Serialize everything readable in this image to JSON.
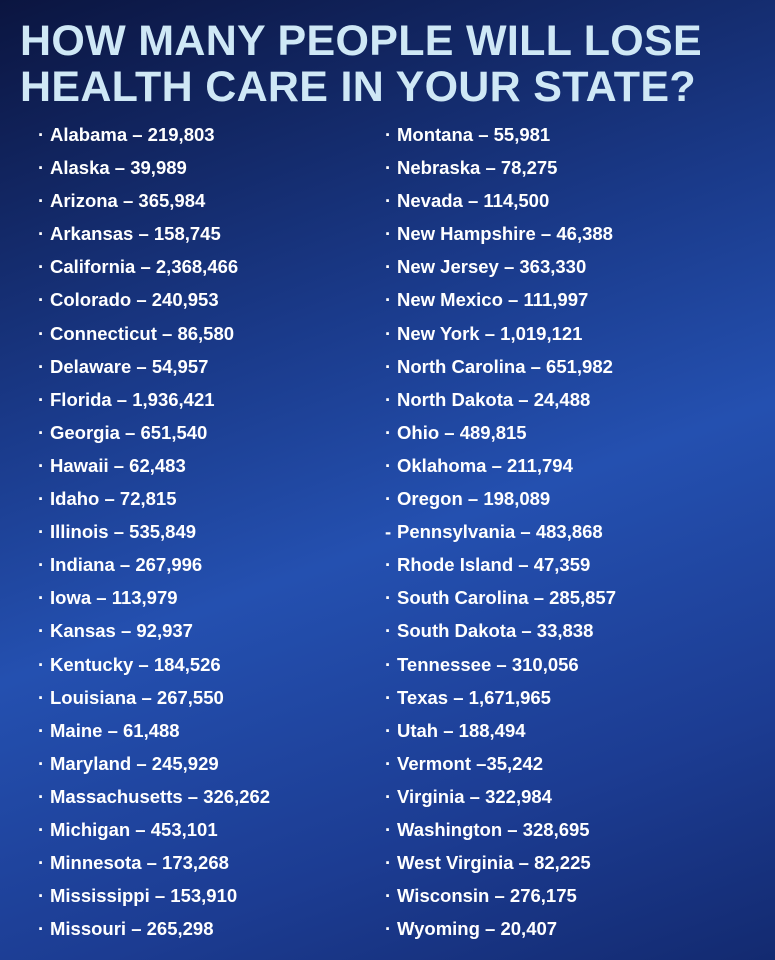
{
  "header": {
    "title_lines": [
      "HOW MANY PEOPLE WILL LOSE",
      "HEALTH CARE IN YOUR STATE?"
    ]
  },
  "columns": [
    {
      "items": [
        "Alabama – 219,803",
        "Alaska – 39,989",
        "Arizona – 365,984",
        "Arkansas – 158,745",
        "California – 2,368,466",
        "Colorado – 240,953",
        "Connecticut – 86,580",
        "Delaware – 54,957",
        "Florida – 1,936,421",
        "Georgia – 651,540",
        "Hawaii – 62,483",
        "Idaho – 72,815",
        "Illinois – 535,849",
        "Indiana – 267,996",
        "Iowa – 113,979",
        "Kansas – 92,937",
        "Kentucky – 184,526",
        "Louisiana – 267,550",
        "Maine – 61,488",
        "Maryland – 245,929",
        "Massachusetts – 326,262",
        "Michigan – 453,101",
        "Minnesota – 173,268",
        "Mississippi – 153,910",
        "Missouri – 265,298"
      ]
    },
    {
      "items": [
        "Montana – 55,981",
        "Nebraska – 78,275",
        "Nevada – 114,500",
        "New Hampshire – 46,388",
        "New Jersey – 363,330",
        "New Mexico – 111,997",
        "New York – 1,019,121",
        "North Carolina – 651,982",
        "North Dakota – 24,488",
        "Ohio – 489,815",
        "Oklahoma – 211,794",
        "Oregon – 198,089",
        "Pennsylvania – 483,868",
        "Rhode Island – 47,359",
        "South Carolina – 285,857",
        "South Dakota – 33,838",
        "Tennessee – 310,056",
        "Texas – 1,671,965",
        "Utah – 188,494",
        "Vermont –35,242",
        "Virginia – 322,984",
        "Washington – 328,695",
        "West Virginia – 82,225",
        "Wisconsin – 276,175",
        "Wyoming – 20,407"
      ]
    }
  ]
}
